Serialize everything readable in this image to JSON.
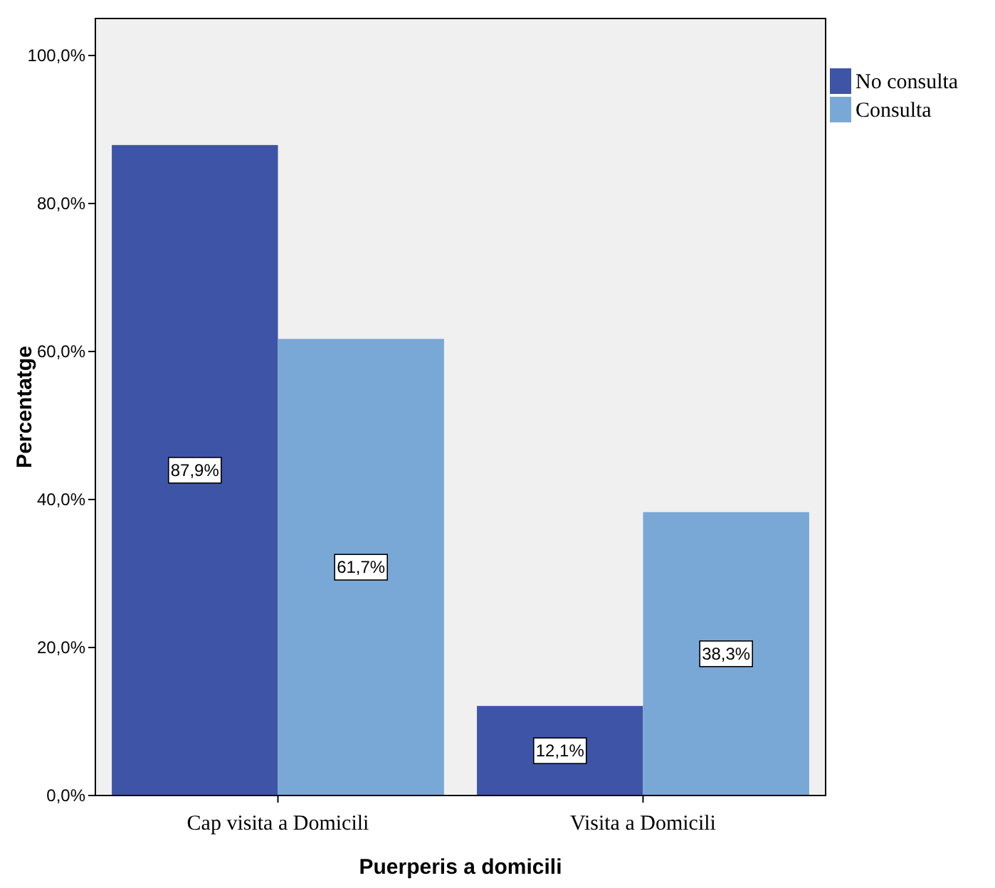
{
  "chart_data": {
    "type": "bar",
    "xlabel": "Puerperis a domicili",
    "ylabel": "Percentatge",
    "categories": [
      "Cap visita a Domicili",
      "Visita a Domicili"
    ],
    "series": [
      {
        "name": "No consulta",
        "color": "#3e54a6",
        "values": [
          87.9,
          12.1
        ],
        "value_labels": [
          "87,9%",
          "12,1%"
        ]
      },
      {
        "name": "Consulta",
        "color": "#7aa8d6",
        "values": [
          61.7,
          38.3
        ],
        "value_labels": [
          "61,7%",
          "38,3%"
        ]
      }
    ],
    "ylim": [
      0,
      105
    ],
    "yticks": [
      {
        "value": 0,
        "label": "0,0%"
      },
      {
        "value": 20,
        "label": "20,0%"
      },
      {
        "value": 40,
        "label": "40,0%"
      },
      {
        "value": 60,
        "label": "60,0%"
      },
      {
        "value": 80,
        "label": "80,0%"
      },
      {
        "value": 100,
        "label": "100,0%"
      }
    ],
    "grid": false,
    "legend": "top right"
  }
}
